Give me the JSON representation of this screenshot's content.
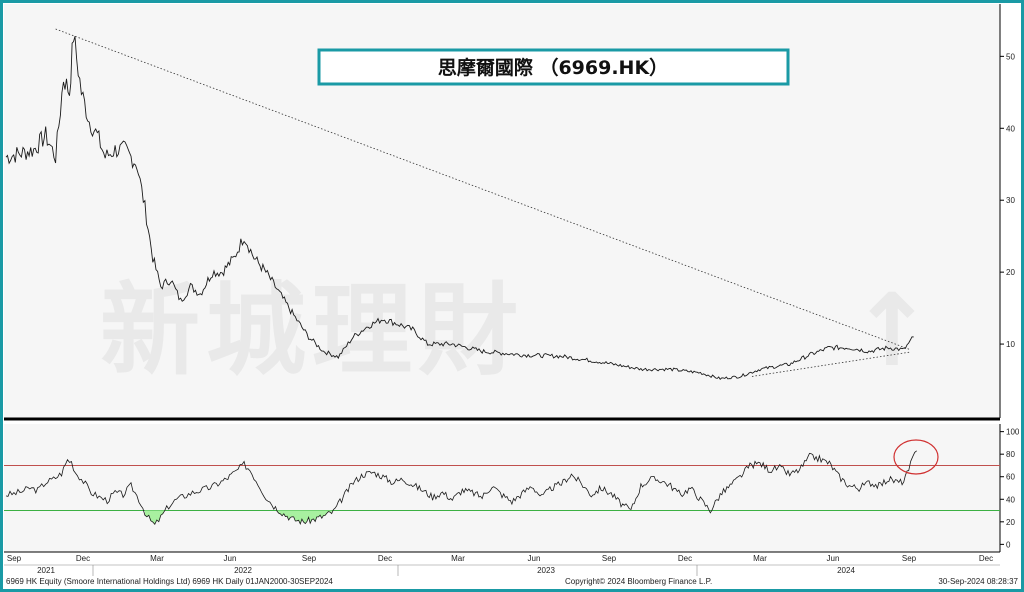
{
  "chart_data": [
    {
      "type": "line",
      "title": "思摩爾國際 （6969.HK）",
      "series": [
        {
          "values": [
            [
              0,
              36
            ],
            [
              14,
              36.5
            ],
            [
              28,
              37
            ],
            [
              40,
              39
            ],
            [
              50,
              36
            ],
            [
              58,
              47
            ],
            [
              64,
              45
            ],
            [
              68,
              53
            ],
            [
              76,
              45
            ],
            [
              84,
              41
            ],
            [
              92,
              39
            ],
            [
              100,
              36
            ],
            [
              110,
              37
            ],
            [
              120,
              37
            ],
            [
              132,
              35
            ],
            [
              140,
              29
            ],
            [
              148,
              22
            ],
            [
              156,
              18
            ],
            [
              166,
              19
            ],
            [
              176,
              16
            ],
            [
              186,
              18
            ],
            [
              196,
              17
            ],
            [
              208,
              20
            ],
            [
              218,
              20
            ],
            [
              230,
              22
            ],
            [
              240,
              25
            ],
            [
              250,
              22
            ],
            [
              262,
              20
            ],
            [
              276,
              17
            ],
            [
              290,
              14
            ],
            [
              305,
              11
            ],
            [
              320,
              9
            ],
            [
              335,
              8.2
            ],
            [
              350,
              11
            ],
            [
              365,
              12.5
            ],
            [
              380,
              13.5
            ],
            [
              395,
              12.8
            ],
            [
              410,
              12
            ],
            [
              425,
              10
            ],
            [
              450,
              10
            ],
            [
              480,
              9
            ],
            [
              520,
              8.5
            ],
            [
              560,
              8.3
            ],
            [
              600,
              7.5
            ],
            [
              640,
              6.5
            ],
            [
              670,
              6.5
            ],
            [
              700,
              6.0
            ],
            [
              720,
              5.2
            ],
            [
              740,
              5.5
            ],
            [
              760,
              6.5
            ],
            [
              790,
              7.2
            ],
            [
              810,
              8.5
            ],
            [
              830,
              9.5
            ],
            [
              850,
              9.5
            ],
            [
              870,
              9.0
            ],
            [
              890,
              9.5
            ],
            [
              905,
              9.2
            ],
            [
              915,
              11
            ]
          ]
        }
      ],
      "trendlines": [
        {
          "from": [
            50,
            53.8
          ],
          "to": [
            912,
            9.2
          ]
        },
        {
          "from": [
            752,
            5.5
          ],
          "to": [
            912,
            8.9
          ]
        }
      ],
      "y_ticks": [
        "10",
        "20",
        "30",
        "40",
        "50"
      ],
      "ylim": [
        0,
        57
      ]
    },
    {
      "type": "line",
      "series": [
        {
          "values": [
            [
              0,
              44
            ],
            [
              8,
              45
            ],
            [
              16,
              47
            ],
            [
              24,
              50
            ],
            [
              32,
              48
            ],
            [
              40,
              55
            ],
            [
              48,
              58
            ],
            [
              56,
              63
            ],
            [
              62,
              75
            ],
            [
              66,
              73
            ],
            [
              70,
              64
            ],
            [
              78,
              56
            ],
            [
              86,
              46
            ],
            [
              94,
              42
            ],
            [
              102,
              39
            ],
            [
              110,
              46
            ],
            [
              118,
              44
            ],
            [
              126,
              52
            ],
            [
              134,
              40
            ],
            [
              142,
              25
            ],
            [
              150,
              17
            ],
            [
              156,
              24
            ],
            [
              164,
              34
            ],
            [
              172,
              40
            ],
            [
              180,
              43
            ],
            [
              188,
              46
            ],
            [
              196,
              48
            ],
            [
              204,
              50
            ],
            [
              212,
              53
            ],
            [
              222,
              58
            ],
            [
              232,
              65
            ],
            [
              240,
              71
            ],
            [
              246,
              66
            ],
            [
              254,
              54
            ],
            [
              262,
              42
            ],
            [
              270,
              34
            ],
            [
              280,
              27
            ],
            [
              290,
              22
            ],
            [
              300,
              20
            ],
            [
              310,
              22
            ],
            [
              320,
              25
            ],
            [
              330,
              29
            ],
            [
              340,
              42
            ],
            [
              350,
              55
            ],
            [
              360,
              62
            ],
            [
              370,
              64
            ],
            [
              380,
              60
            ],
            [
              390,
              55
            ],
            [
              400,
              58
            ],
            [
              410,
              53
            ],
            [
              420,
              48
            ],
            [
              430,
              42
            ],
            [
              440,
              46
            ],
            [
              450,
              40
            ],
            [
              460,
              48
            ],
            [
              470,
              46
            ],
            [
              480,
              42
            ],
            [
              490,
              52
            ],
            [
              500,
              44
            ],
            [
              510,
              38
            ],
            [
              520,
              45
            ],
            [
              530,
              52
            ],
            [
              540,
              42
            ],
            [
              550,
              50
            ],
            [
              560,
              54
            ],
            [
              570,
              62
            ],
            [
              580,
              54
            ],
            [
              590,
              44
            ],
            [
              600,
              50
            ],
            [
              610,
              45
            ],
            [
              620,
              36
            ],
            [
              630,
              30
            ],
            [
              640,
              52
            ],
            [
              650,
              58
            ],
            [
              660,
              57
            ],
            [
              670,
              52
            ],
            [
              680,
              44
            ],
            [
              690,
              50
            ],
            [
              700,
              40
            ],
            [
              710,
              30
            ],
            [
              720,
              44
            ],
            [
              730,
              52
            ],
            [
              740,
              60
            ],
            [
              750,
              70
            ],
            [
              760,
              72
            ],
            [
              770,
              66
            ],
            [
              780,
              68
            ],
            [
              790,
              62
            ],
            [
              800,
              66
            ],
            [
              810,
              78
            ],
            [
              820,
              76
            ],
            [
              830,
              72
            ],
            [
              840,
              60
            ],
            [
              850,
              52
            ],
            [
              860,
              50
            ],
            [
              870,
              55
            ],
            [
              880,
              52
            ],
            [
              890,
              58
            ],
            [
              900,
              55
            ],
            [
              905,
              56
            ],
            [
              910,
              66
            ],
            [
              914,
              76
            ],
            [
              918,
              83
            ]
          ]
        }
      ],
      "reference_lines": [
        70,
        30
      ],
      "y_ticks": [
        "0",
        "20",
        "40",
        "60",
        "80",
        "100"
      ],
      "ylim": [
        -5,
        105
      ],
      "x_month_labels": [
        "Sep",
        "Dec",
        "Mar",
        "Jun",
        "Sep",
        "Dec",
        "Mar",
        "Jun",
        "Sep",
        "Dec",
        "Mar",
        "Jun",
        "Sep",
        "Dec"
      ],
      "x_year_labels": [
        "2021",
        "2022",
        "2023",
        "2024"
      ]
    }
  ],
  "footer": {
    "left": "6969 HK Equity (Smoore International Holdings Ltd) 6969 HK  Daily 01JAN2000-30SEP2024",
    "center": "Copyright© 2024 Bloomberg Finance L.P.",
    "right": "30-Sep-2024 08:28:37"
  },
  "watermark": "新城理財",
  "colors": {
    "frame": "#1a9aa5",
    "title_border": "#1a9aa5",
    "price_line": "#1a1a1a",
    "rsi_line": "#1a1a1a",
    "overbought_line": "#c0504d",
    "oversold_line": "#3cb043",
    "oversold_fill": "#a8f0a0",
    "highlight_circle": "#d03030",
    "panel_bg": "#f6f6f6"
  }
}
